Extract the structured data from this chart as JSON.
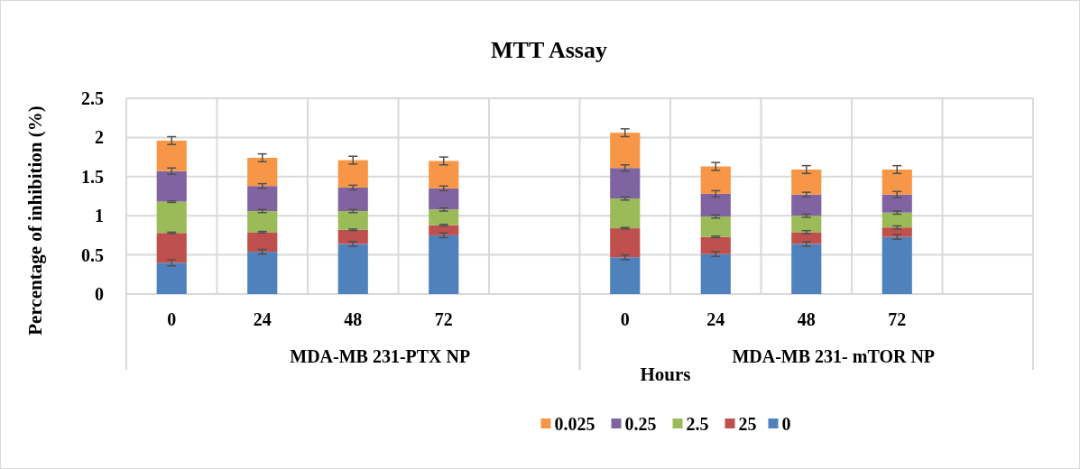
{
  "chart_data": {
    "type": "bar",
    "title": "MTT Assay",
    "xlabel": "Hours",
    "ylabel": "Percentage of inhibition (%)",
    "categories": [
      "0",
      "24",
      "48",
      "72",
      null,
      "0",
      "24",
      "48",
      "72",
      null
    ],
    "annotations": [
      "MDA-MB 231-PTX NP",
      "MDA-MB 231- mTOR NP"
    ],
    "stacked": true,
    "ylim": [
      0,
      2.5
    ],
    "yticks": [
      0,
      0.5,
      1,
      1.5,
      2,
      2.5
    ],
    "grid": true,
    "legend": "bottom",
    "series": [
      {
        "name": "0",
        "color": "#4f81bd",
        "values": [
          0.4,
          0.54,
          0.64,
          0.75,
          null,
          0.47,
          0.51,
          0.64,
          0.73,
          null
        ],
        "errors": [
          0.04,
          0.03,
          0.03,
          0.03,
          null,
          0.03,
          0.03,
          0.03,
          0.03,
          null
        ]
      },
      {
        "name": "25",
        "color": "#c0504d",
        "values": [
          0.38,
          0.25,
          0.18,
          0.13,
          null,
          0.37,
          0.22,
          0.15,
          0.12,
          null
        ],
        "errors": [
          0.01,
          0.01,
          0.01,
          0.01,
          null,
          0.01,
          0.01,
          0.02,
          0.02,
          null
        ]
      },
      {
        "name": "2.5",
        "color": "#9bbb59",
        "values": [
          0.4,
          0.27,
          0.24,
          0.2,
          null,
          0.38,
          0.26,
          0.21,
          0.19,
          null
        ],
        "errors": [
          0.01,
          0.02,
          0.02,
          0.02,
          null,
          0.02,
          0.02,
          0.02,
          0.02,
          null
        ]
      },
      {
        "name": "0.25",
        "color": "#8064a2",
        "values": [
          0.39,
          0.32,
          0.3,
          0.27,
          null,
          0.39,
          0.29,
          0.27,
          0.23,
          null
        ],
        "errors": [
          0.04,
          0.03,
          0.03,
          0.03,
          null,
          0.04,
          0.04,
          0.03,
          0.04,
          null
        ]
      },
      {
        "name": "0.025",
        "color": "#f79646",
        "values": [
          0.39,
          0.36,
          0.35,
          0.35,
          null,
          0.45,
          0.35,
          0.32,
          0.32,
          null
        ],
        "errors": [
          0.05,
          0.05,
          0.05,
          0.05,
          null,
          0.05,
          0.05,
          0.05,
          0.05,
          null
        ]
      }
    ]
  }
}
